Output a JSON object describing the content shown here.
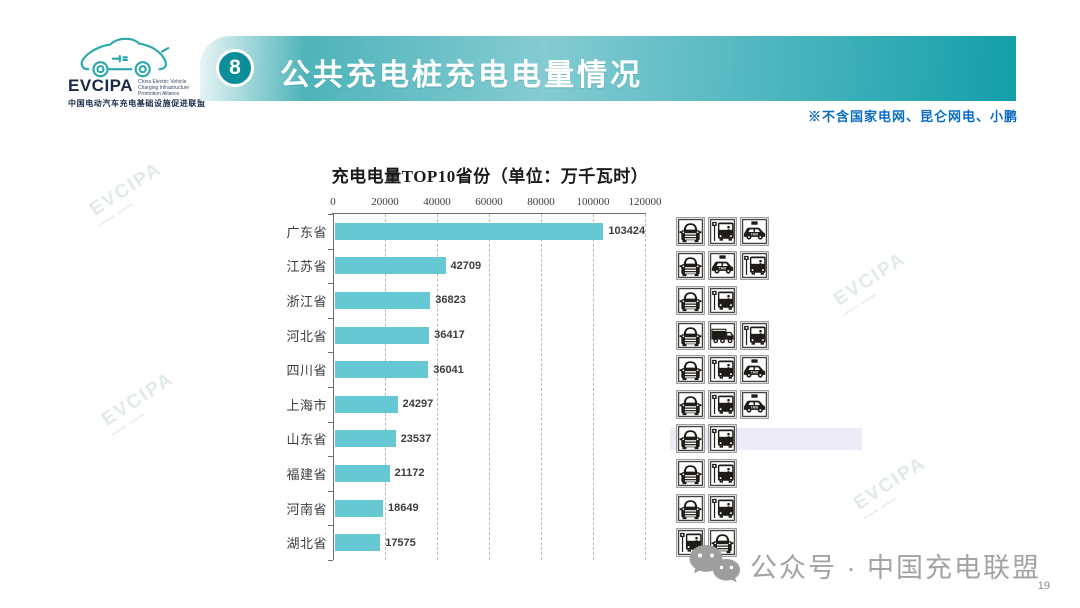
{
  "logo": {
    "acronym": "EVCIPA",
    "subtitle_en": "China Electric Vehicle\nCharging Infrastructure\nPromotion Alliance",
    "subtitle_cn": "中国电动汽车充电基础设施促进联盟"
  },
  "header": {
    "badge": "8",
    "title": "公共充电桩充电电量情况",
    "note": "※不含国家电网、昆仑网电、小鹏",
    "accent_color": "#139faa"
  },
  "chart_data": {
    "type": "bar",
    "orientation": "horizontal",
    "title": "充电电量TOP10省份（单位：万千瓦时）",
    "categories": [
      "广东省",
      "江苏省",
      "浙江省",
      "河北省",
      "四川省",
      "上海市",
      "山东省",
      "福建省",
      "河南省",
      "湖北省"
    ],
    "values": [
      103424,
      42709,
      36823,
      36417,
      36041,
      24297,
      23537,
      21172,
      18649,
      17575
    ],
    "xlabel": "",
    "ylabel": "",
    "xlim": [
      0,
      120000
    ],
    "x_ticks": [
      0,
      20000,
      40000,
      60000,
      80000,
      100000,
      120000
    ],
    "bar_color": "#66c8d2",
    "grid": "vertical-dashed",
    "value_labels": true,
    "axis_position": "top"
  },
  "icon_rows": [
    {
      "province": "广东省",
      "icons": [
        "car-icon",
        "bus-stop-icon",
        "taxi-icon"
      ]
    },
    {
      "province": "江苏省",
      "icons": [
        "car-icon",
        "taxi-icon",
        "bus-stop-icon"
      ]
    },
    {
      "province": "浙江省",
      "icons": [
        "car-icon",
        "bus-stop-icon"
      ]
    },
    {
      "province": "河北省",
      "icons": [
        "car-icon",
        "truck-icon",
        "bus-stop-icon"
      ]
    },
    {
      "province": "四川省",
      "icons": [
        "car-icon",
        "bus-stop-icon",
        "taxi-icon"
      ]
    },
    {
      "province": "上海市",
      "icons": [
        "car-icon",
        "bus-stop-icon",
        "taxi-icon"
      ]
    },
    {
      "province": "山东省",
      "icons": [
        "car-icon",
        "bus-stop-icon"
      ]
    },
    {
      "province": "福建省",
      "icons": [
        "car-icon",
        "bus-stop-icon"
      ]
    },
    {
      "province": "河南省",
      "icons": [
        "car-icon",
        "bus-stop-icon"
      ]
    },
    {
      "province": "湖北省",
      "icons": [
        "bus-stop-icon",
        "car-icon"
      ]
    }
  ],
  "footer": {
    "watermark": "公众号 · 中国充电联盟",
    "page_number": "19"
  },
  "background_watermark": "EVCIPA"
}
